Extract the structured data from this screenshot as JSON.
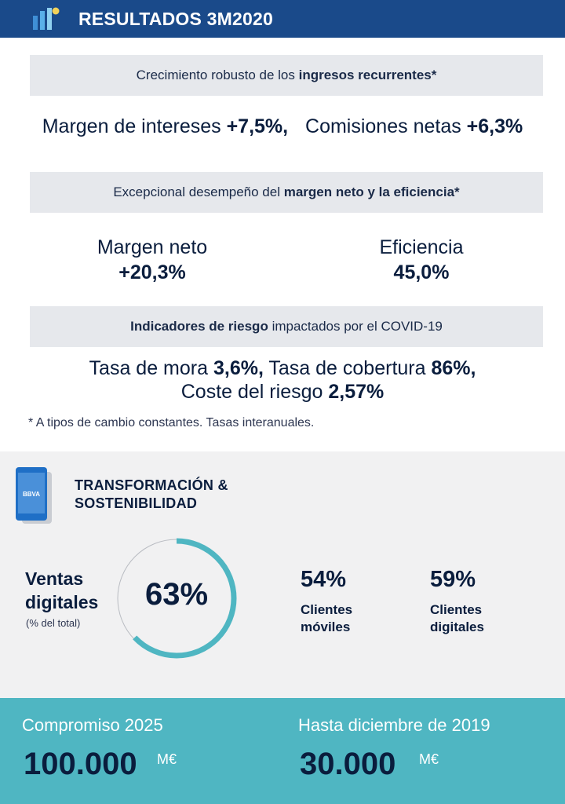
{
  "header": {
    "title": "RESULTADOS 3M2020"
  },
  "section1": {
    "band_prefix": "Crecimiento robusto de los ",
    "band_bold": "ingresos recurrentes*",
    "ni_label": "Margen de intereses ",
    "ni_value": "+7,5%,",
    "fees_label": "Comisiones netas ",
    "fees_value": "+6,3%"
  },
  "section2": {
    "band_prefix": "Excepcional desempeño del ",
    "band_bold": "margen neto y la eficiencia*",
    "net_label": "Margen neto",
    "net_value": "+20,3%",
    "eff_label": "Eficiencia",
    "eff_value": "45,0%"
  },
  "section3": {
    "band_bold": "Indicadores de riesgo",
    "band_suffix": " impactados por el COVID-19",
    "npl_label": "Tasa de mora ",
    "npl_value": "3,6%,",
    "coverage_label": " Tasa de cobertura ",
    "coverage_value": "86%,",
    "cor_label": "Coste del riesgo ",
    "cor_value": "2,57%"
  },
  "footnote": "* A tipos de cambio constantes. Tasas interanuales.",
  "transform": {
    "phone_brand": "BBVA",
    "title_line1": "TRANSFORMACIÓN &",
    "title_line2": "SOSTENIBILIDAD",
    "ventas_line1": "Ventas",
    "ventas_line2": "digitales",
    "ventas_sub": "(% del total)",
    "ventas_value": "63%",
    "ventas_fraction": 0.63,
    "mobile_value": "54%",
    "mobile_line1": "Clientes",
    "mobile_line2": "móviles",
    "digital_value": "59%",
    "digital_line1": "Clientes",
    "digital_line2": "digitales"
  },
  "bottom": {
    "left_label": "Compromiso 2025",
    "left_value": "100.000",
    "left_unit": "M€",
    "right_label": "Hasta diciembre de 2019",
    "right_value": "30.000",
    "right_unit": "M€"
  },
  "colors": {
    "header_bg": "#1a4a8a",
    "accent_teal": "#4fb6c2",
    "band_grey": "#e6e8ec",
    "text_navy": "#0a1d3d"
  }
}
